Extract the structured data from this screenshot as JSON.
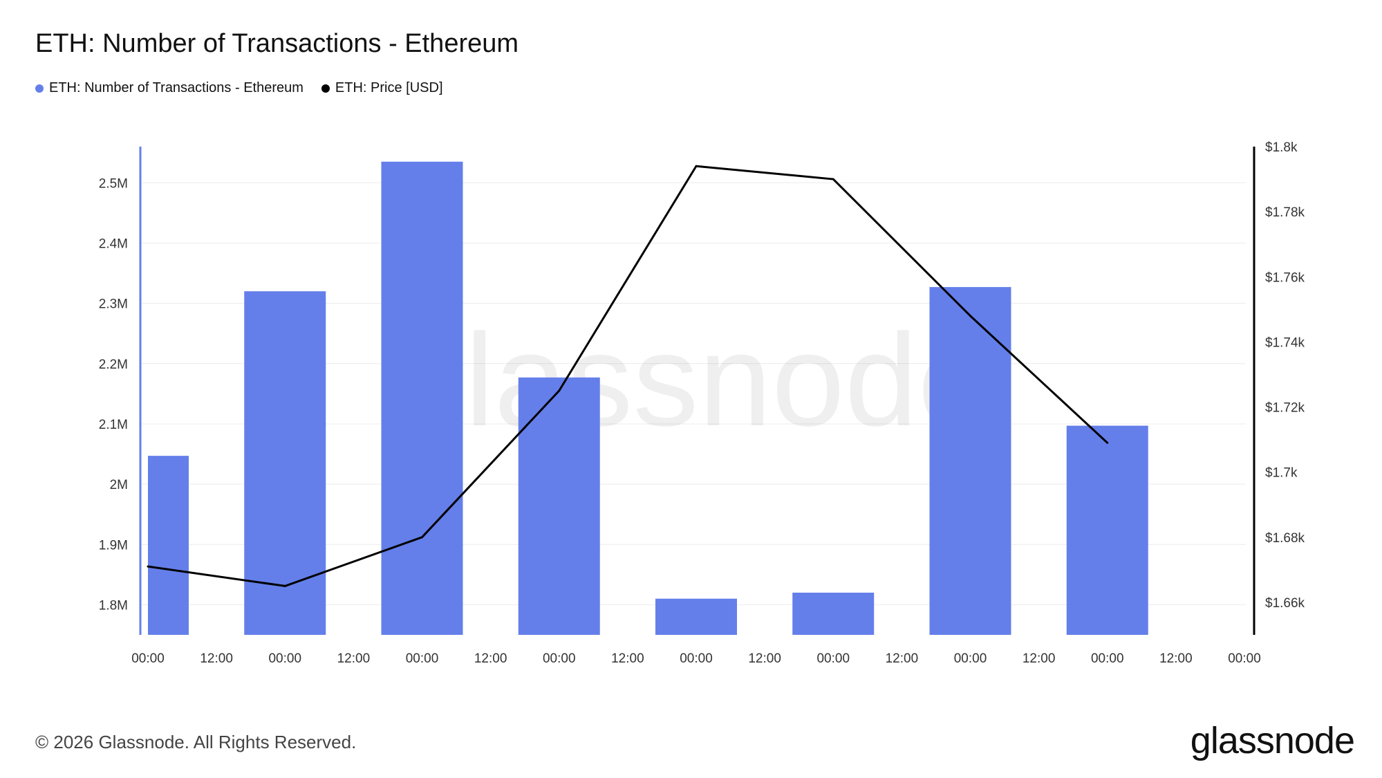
{
  "title": "ETH: Number of Transactions - Ethereum",
  "legend": [
    {
      "label": "ETH: Number of Transactions - Ethereum",
      "color": "#647fea"
    },
    {
      "label": "ETH: Price [USD]",
      "color": "#000000"
    }
  ],
  "watermark": "glassnode",
  "footer": {
    "copyright": "© 2026 Glassnode. All Rights Reserved.",
    "logo": "glassnode"
  },
  "chart_data": {
    "type": "bar",
    "title": "ETH: Number of Transactions - Ethereum",
    "x_tick_labels": [
      "00:00",
      "12:00",
      "00:00",
      "12:00",
      "00:00",
      "12:00",
      "00:00",
      "12:00",
      "00:00",
      "12:00",
      "00:00",
      "12:00",
      "00:00",
      "12:00",
      "00:00",
      "12:00",
      "00:00"
    ],
    "left_axis": {
      "ylim": [
        1750000,
        2560000
      ],
      "ticks": [
        1800000,
        1900000,
        2000000,
        2100000,
        2200000,
        2300000,
        2400000,
        2500000
      ],
      "tick_labels": [
        "1.8M",
        "1.9M",
        "2M",
        "2.1M",
        "2.2M",
        "2.3M",
        "2.4M",
        "2.5M"
      ]
    },
    "right_axis": {
      "ylim": [
        1650,
        1800
      ],
      "ticks": [
        1660,
        1680,
        1700,
        1720,
        1740,
        1760,
        1780,
        1800
      ],
      "tick_labels": [
        "$1.66k",
        "$1.68k",
        "$1.7k",
        "$1.72k",
        "$1.74k",
        "$1.76k",
        "$1.78k",
        "$1.8k"
      ]
    },
    "grid": true,
    "series": [
      {
        "name": "ETH: Number of Transactions - Ethereum",
        "type": "bar",
        "axis": "left",
        "color": "#647fea",
        "values": [
          2047000,
          2320000,
          2535000,
          2177000,
          1810000,
          1820000,
          2327000,
          2097000
        ]
      },
      {
        "name": "ETH: Price [USD]",
        "type": "line",
        "axis": "right",
        "color": "#000000",
        "values": [
          1671,
          1665,
          1680,
          1725,
          1794,
          1790,
          1748,
          1709
        ]
      }
    ]
  }
}
